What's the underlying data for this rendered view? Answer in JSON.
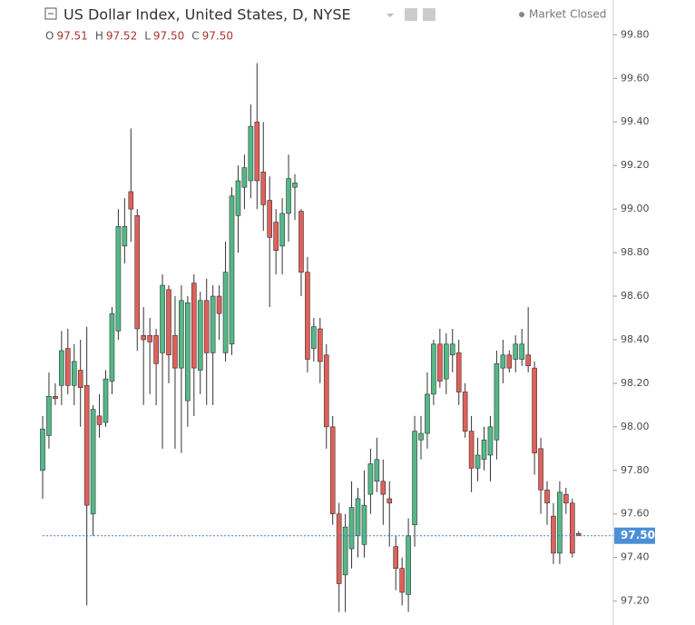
{
  "chart_data": {
    "type": "candlestick",
    "title": "US Dollar Index, United States, D, NYSE",
    "status": "Market Closed",
    "legend": [
      {
        "key": "O",
        "value": "97.51"
      },
      {
        "key": "H",
        "value": "97.52"
      },
      {
        "key": "L",
        "value": "97.50"
      },
      {
        "key": "C",
        "value": "97.50"
      }
    ],
    "up_color": "#53b987",
    "down_color": "#e0605a",
    "ylim": [
      97.09,
      99.96
    ],
    "yticks": [
      {
        "value": 97.2,
        "label": "97.20"
      },
      {
        "value": 97.4,
        "label": "97.40"
      },
      {
        "value": 97.6,
        "label": "97.60"
      },
      {
        "value": 97.8,
        "label": "97.80"
      },
      {
        "value": 98,
        "label": "98.00"
      },
      {
        "value": 98.2,
        "label": "98.20"
      },
      {
        "value": 98.4,
        "label": "98.40"
      },
      {
        "value": 98.6,
        "label": "98.60"
      },
      {
        "value": 98.8,
        "label": "98.80"
      },
      {
        "value": 99,
        "label": "99.00"
      },
      {
        "value": 99.2,
        "label": "99.20"
      },
      {
        "value": 99.4,
        "label": "99.40"
      },
      {
        "value": 99.6,
        "label": "99.60"
      },
      {
        "value": 99.8,
        "label": "99.80"
      }
    ],
    "last_price": {
      "value": 97.5,
      "label": "97.50"
    },
    "open": [
      97.8,
      97.96,
      98.14,
      98.19,
      98.36,
      98.19,
      98.26,
      98.19,
      97.6,
      98.05,
      98.02,
      98.21,
      98.44,
      98.83,
      99.08,
      98.97,
      98.42,
      98.42,
      98.42,
      98.34,
      98.63,
      98.42,
      98.27,
      98.12,
      98.66,
      98.26,
      98.58,
      98.34,
      98.6,
      98.34,
      98.38,
      98.97,
      99.1,
      99.13,
      99.4,
      99.17,
      99.04,
      98.94,
      98.83,
      98.98,
      99.1,
      98.99,
      98.71,
      98.36,
      98.45,
      98.33,
      98.0,
      97.6,
      97.32,
      97.44,
      97.5,
      97.46,
      97.69,
      97.75,
      97.75,
      97.67,
      97.45,
      97.35,
      97.23,
      97.55,
      97.94,
      97.97,
      98.15,
      98.38,
      98.22,
      98.33,
      98.34,
      98.16,
      97.98,
      97.81,
      97.85,
      97.87,
      97.94,
      98.27,
      98.33,
      98.31,
      98.31,
      98.33,
      98.27,
      97.9,
      97.71,
      97.59,
      97.42,
      97.69,
      97.65,
      97.51
    ],
    "high": [
      98.05,
      98.25,
      98.2,
      98.44,
      98.45,
      98.38,
      98.4,
      98.46,
      98.1,
      98.15,
      98.26,
      98.55,
      99.0,
      99.05,
      99.37,
      99.0,
      98.55,
      98.5,
      98.45,
      98.7,
      98.65,
      98.6,
      98.65,
      98.6,
      98.7,
      98.62,
      98.68,
      98.65,
      98.65,
      98.85,
      99.1,
      99.2,
      99.25,
      99.48,
      99.67,
      99.4,
      99.15,
      99.0,
      99.05,
      99.25,
      99.16,
      99.0,
      98.78,
      98.5,
      98.5,
      98.38,
      98.05,
      97.65,
      97.6,
      97.75,
      97.72,
      97.8,
      97.9,
      97.95,
      97.85,
      97.75,
      97.5,
      97.4,
      97.58,
      98.05,
      98.05,
      98.25,
      98.4,
      98.45,
      98.43,
      98.45,
      98.4,
      98.2,
      98.05,
      97.95,
      98.0,
      98.05,
      98.35,
      98.4,
      98.35,
      98.42,
      98.45,
      98.55,
      98.3,
      97.95,
      97.75,
      97.65,
      97.75,
      97.72,
      97.67,
      97.52
    ],
    "low": [
      97.67,
      97.9,
      98.1,
      98.1,
      98.15,
      98.1,
      98.0,
      97.18,
      97.5,
      97.95,
      98.0,
      98.15,
      98.4,
      98.75,
      98.85,
      98.35,
      98.1,
      98.15,
      98.1,
      97.9,
      98.2,
      97.9,
      97.88,
      98.0,
      98.05,
      98.15,
      98.1,
      98.1,
      98.4,
      98.3,
      98.33,
      98.8,
      99.0,
      99.05,
      99.0,
      98.9,
      98.55,
      98.7,
      98.7,
      98.85,
      98.95,
      98.6,
      98.25,
      98.3,
      98.2,
      97.9,
      97.55,
      97.15,
      97.15,
      97.35,
      97.4,
      97.4,
      97.6,
      97.7,
      97.55,
      97.45,
      97.25,
      97.18,
      97.15,
      97.45,
      97.85,
      97.9,
      98.1,
      98.18,
      98.15,
      98.25,
      98.1,
      97.95,
      97.7,
      97.75,
      97.8,
      97.75,
      97.85,
      98.2,
      98.25,
      98.25,
      98.28,
      98.25,
      97.78,
      97.6,
      97.55,
      97.37,
      97.37,
      97.6,
      97.4,
      97.5
    ],
    "close": [
      97.99,
      98.14,
      98.13,
      98.35,
      98.19,
      98.3,
      98.18,
      97.64,
      98.08,
      98.01,
      98.22,
      98.52,
      98.92,
      98.92,
      99.0,
      98.45,
      98.4,
      98.39,
      98.29,
      98.65,
      98.33,
      98.27,
      98.58,
      98.57,
      98.27,
      98.58,
      98.34,
      98.6,
      98.52,
      98.71,
      99.06,
      99.13,
      99.19,
      99.38,
      99.13,
      99.02,
      98.87,
      98.81,
      98.98,
      99.14,
      99.12,
      98.71,
      98.31,
      98.46,
      98.3,
      98.0,
      97.6,
      97.28,
      97.54,
      97.63,
      97.67,
      97.64,
      97.83,
      97.85,
      97.69,
      97.65,
      97.35,
      97.24,
      97.5,
      97.98,
      97.97,
      98.15,
      98.38,
      98.21,
      98.38,
      98.38,
      98.16,
      97.98,
      97.81,
      97.87,
      97.94,
      98.0,
      98.29,
      98.33,
      98.27,
      98.38,
      98.38,
      98.28,
      97.88,
      97.71,
      97.65,
      97.42,
      97.7,
      97.65,
      97.42,
      97.5
    ]
  }
}
